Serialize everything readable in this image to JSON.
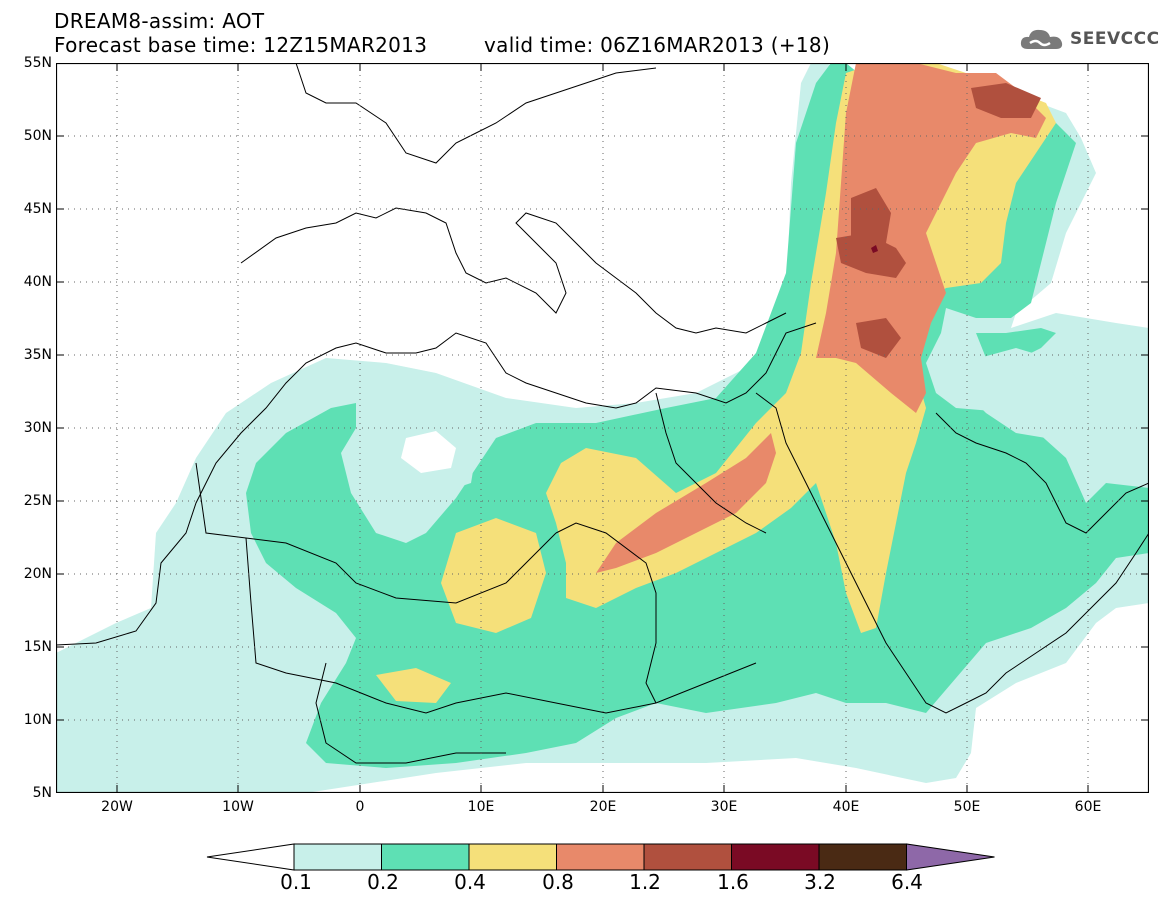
{
  "header": {
    "title": "DREAM8-assim: AOT",
    "base_time": "Forecast base time: 12Z15MAR2013",
    "valid_time": "valid time: 06Z16MAR2013 (+18)"
  },
  "logo": {
    "text": "SEEVCCC",
    "icon": "cloud-icon"
  },
  "map": {
    "variable": "AOT",
    "lat_range": [
      5,
      55
    ],
    "lon_range": [
      -25,
      65
    ],
    "lat_labels": [
      "55N",
      "50N",
      "45N",
      "40N",
      "35N",
      "30N",
      "25N",
      "20N",
      "15N",
      "10N",
      "5N"
    ],
    "lon_labels": [
      "20W",
      "10W",
      "0",
      "10E",
      "20E",
      "30E",
      "40E",
      "50E",
      "60E"
    ]
  },
  "colorbar": {
    "labels": [
      "0.1",
      "0.2",
      "0.4",
      "0.8",
      "1.2",
      "1.6",
      "3.2",
      "6.4"
    ],
    "colors": [
      "#ffffff",
      "#c8f0ea",
      "#5ee0b4",
      "#f5e07a",
      "#e8896a",
      "#b0503e",
      "#7a0a24",
      "#4a2a14",
      "#8e68a8"
    ]
  }
}
